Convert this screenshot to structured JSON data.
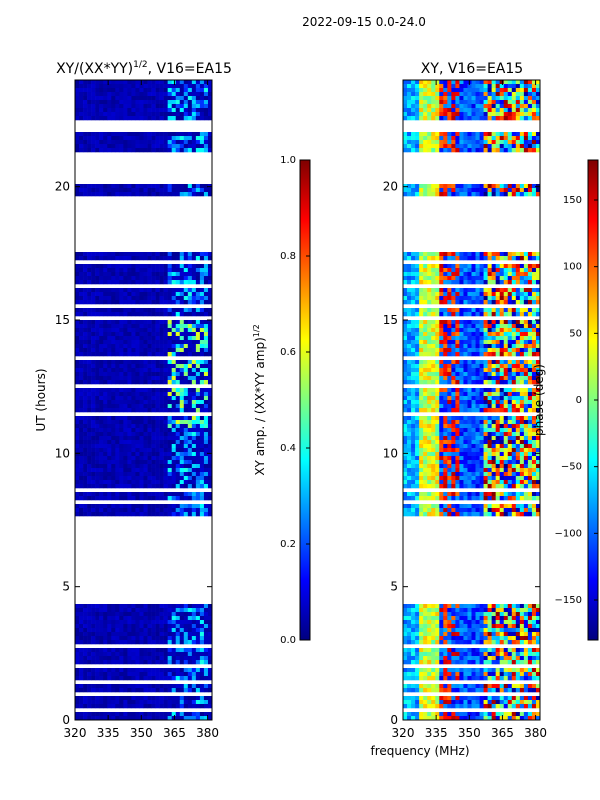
{
  "figure": {
    "suptitle": "2022-09-15 0.0-24.0",
    "xlabel": "frequency (MHz)"
  },
  "colors": {
    "jet": [
      "#00007f",
      "#0000ff",
      "#007fff",
      "#00ffff",
      "#7fff7f",
      "#ffff00",
      "#ff7f00",
      "#ff0000",
      "#7f0000"
    ],
    "axis": "#000000",
    "background": "#ffffff"
  },
  "chart_data": [
    {
      "type": "heatmap",
      "title": "XY/(XX*YY)",
      "title_superscript": "1/2",
      "title_suffix": ", V16=EA15",
      "xlabel": "",
      "ylabel": "UT (hours)",
      "xlim": [
        320,
        382
      ],
      "ylim": [
        0,
        24
      ],
      "xticks": [
        320,
        335,
        350,
        365,
        380
      ],
      "yticks": [
        0,
        5,
        10,
        15,
        20
      ],
      "zlim": [
        0.0,
        1.0
      ],
      "description_metric": "normalized amplitude, mostly low (~0.05) with brighter channels near 362-380 MHz"
    },
    {
      "type": "heatmap",
      "title": "XY, V16=EA15",
      "xlabel": "frequency (MHz)",
      "ylabel": "",
      "xlim": [
        320,
        382
      ],
      "ylim": [
        0,
        24
      ],
      "xticks": [
        320,
        335,
        350,
        365,
        380
      ],
      "yticks": [
        0,
        5,
        10,
        15,
        20
      ],
      "zlim": [
        -180,
        180
      ]
    }
  ],
  "colorbars": [
    {
      "label": "XY amp. / (XX*YY amp)",
      "label_superscript": "1/2",
      "min": 0.0,
      "max": 1.0,
      "ticks": [
        0.0,
        0.2,
        0.4,
        0.6,
        0.8,
        1.0
      ],
      "tick_labels": [
        "0.0",
        "0.2",
        "0.4",
        "0.6",
        "0.8",
        "1.0"
      ]
    },
    {
      "label": "phase (deg)",
      "min": -180,
      "max": 180,
      "ticks": [
        -150,
        -100,
        -50,
        0,
        50,
        100,
        150
      ],
      "tick_labels": [
        "−150",
        "−100",
        "−50",
        "0",
        "50",
        "100",
        "150"
      ]
    }
  ],
  "flagged_intervals_hours": [
    [
      4.4,
      7.6
    ],
    [
      17.6,
      19.7
    ],
    [
      20.1,
      21.3
    ],
    [
      22.0,
      22.5
    ],
    [
      15.0,
      15.1
    ],
    [
      14.8,
      14.9
    ],
    [
      16.2,
      16.3
    ],
    [
      17.1,
      17.2
    ],
    [
      15.5,
      15.6
    ],
    [
      13.5,
      13.6
    ],
    [
      12.5,
      12.6
    ],
    [
      11.4,
      11.5
    ],
    [
      10.0,
      10.1
    ],
    [
      9.1,
      9.2
    ],
    [
      8.6,
      8.7
    ],
    [
      8.1,
      8.2
    ],
    [
      3.7,
      3.8
    ],
    [
      3.1,
      3.2
    ],
    [
      2.7,
      2.8
    ],
    [
      2.0,
      2.1
    ],
    [
      1.4,
      1.5
    ],
    [
      0.9,
      1.0
    ],
    [
      0.3,
      0.4
    ]
  ]
}
